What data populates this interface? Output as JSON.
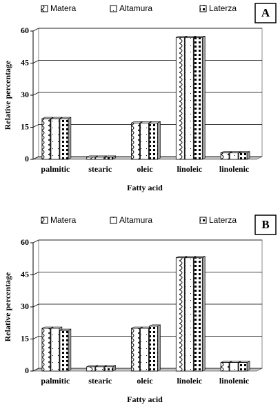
{
  "chart_data": [
    {
      "type": "bar",
      "label": "A",
      "y_label": "Relative percentage",
      "x_label": "Fatty acid",
      "categories": [
        "palmitic",
        "stearic",
        "oleic",
        "linoleic",
        "linolenic"
      ],
      "series": [
        {
          "name": "Matera",
          "color": "#ffffff",
          "values": [
            19,
            1,
            17,
            57,
            3
          ]
        },
        {
          "name": "Altamura",
          "color": "#ffffff",
          "values": [
            19,
            1,
            17,
            57,
            3
          ]
        },
        {
          "name": "Laterza",
          "color": "#ffffff",
          "values": [
            19,
            1,
            17,
            57,
            3
          ]
        }
      ],
      "ylim": [
        0,
        60
      ],
      "yticks": [
        0,
        15,
        30,
        45,
        60
      ],
      "grid": true
    },
    {
      "type": "bar",
      "label": "B",
      "y_label": "Relative percentage",
      "x_label": "Fatty acid",
      "categories": [
        "palmitic",
        "stearic",
        "oleic",
        "linoleic",
        "linolenic"
      ],
      "series": [
        {
          "name": "Matera",
          "color": "#ffffff",
          "values": [
            20,
            2,
            20,
            53,
            4
          ]
        },
        {
          "name": "Altamura",
          "color": "#ffffff",
          "values": [
            20,
            2,
            20,
            53,
            4
          ]
        },
        {
          "name": "Laterza",
          "color": "#ffffff",
          "values": [
            19,
            2,
            21,
            53,
            4
          ]
        }
      ],
      "ylim": [
        0,
        60
      ],
      "yticks": [
        0,
        15,
        30,
        45,
        60
      ],
      "grid": true
    }
  ]
}
